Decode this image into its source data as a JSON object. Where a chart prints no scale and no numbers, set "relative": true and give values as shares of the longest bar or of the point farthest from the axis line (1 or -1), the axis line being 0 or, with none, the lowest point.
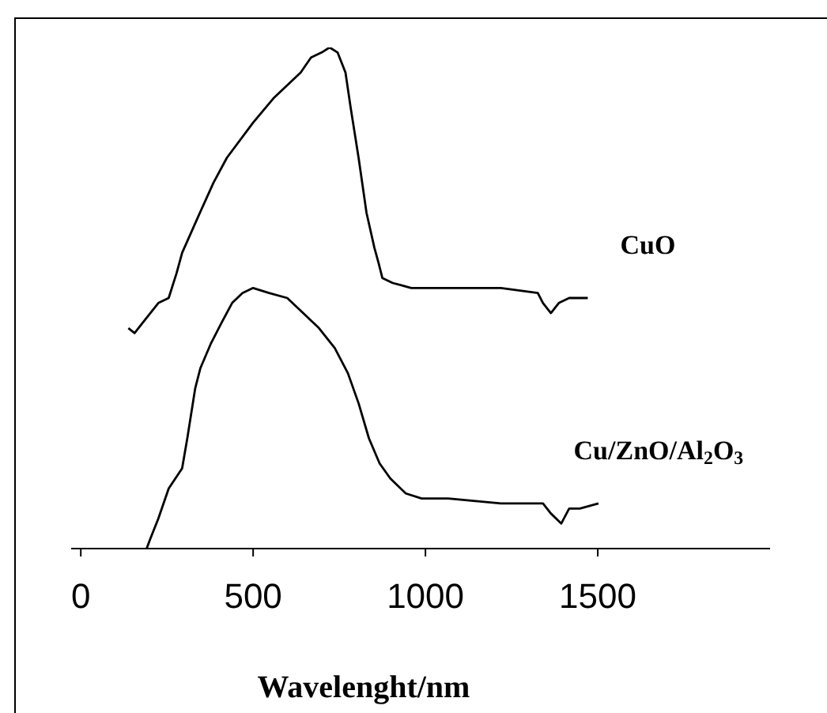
{
  "chart_data": {
    "type": "line",
    "relative": true,
    "marker": "none",
    "xlabel": "Wavelenght/nm",
    "xlim": [
      -28,
      2000
    ],
    "xticks": [
      0,
      500,
      1000,
      1500
    ],
    "series": [
      {
        "name": "CuO",
        "color": "#000000",
        "x": [
          138,
          156,
          179,
          225,
          255,
          278,
          294,
          339,
          385,
          424,
          500,
          561,
          638,
          668,
          699,
          722,
          745,
          768,
          783,
          806,
          829,
          852,
          864,
          875,
          905,
          959,
          1066,
          1219,
          1326,
          1341,
          1364,
          1387,
          1417,
          1471
        ],
        "values": [
          0.44,
          0.43,
          0.45,
          0.49,
          0.5,
          0.55,
          0.59,
          0.66,
          0.73,
          0.78,
          0.85,
          0.9,
          0.95,
          0.98,
          0.99,
          1,
          0.99,
          0.95,
          0.88,
          0.78,
          0.67,
          0.6,
          0.57,
          0.54,
          0.53,
          0.52,
          0.52,
          0.52,
          0.51,
          0.49,
          0.47,
          0.49,
          0.5,
          0.5
        ]
      },
      {
        "name": "Cu/ZnO/Al$_{2}$O$_{3}$",
        "color": "#000000",
        "x": [
          191,
          202,
          225,
          255,
          294,
          309,
          332,
          347,
          378,
          408,
          439,
          469,
          500,
          546,
          599,
          645,
          691,
          737,
          775,
          806,
          836,
          867,
          898,
          943,
          989,
          1066,
          1219,
          1341,
          1364,
          1394,
          1417,
          1448,
          1502
        ],
        "values": [
          0.0,
          0.02,
          0.06,
          0.12,
          0.16,
          0.22,
          0.32,
          0.36,
          0.41,
          0.45,
          0.49,
          0.51,
          0.52,
          0.51,
          0.5,
          0.47,
          0.44,
          0.4,
          0.35,
          0.29,
          0.22,
          0.17,
          0.14,
          0.11,
          0.1,
          0.1,
          0.09,
          0.09,
          0.07,
          0.05,
          0.08,
          0.08,
          0.09
        ]
      }
    ]
  }
}
